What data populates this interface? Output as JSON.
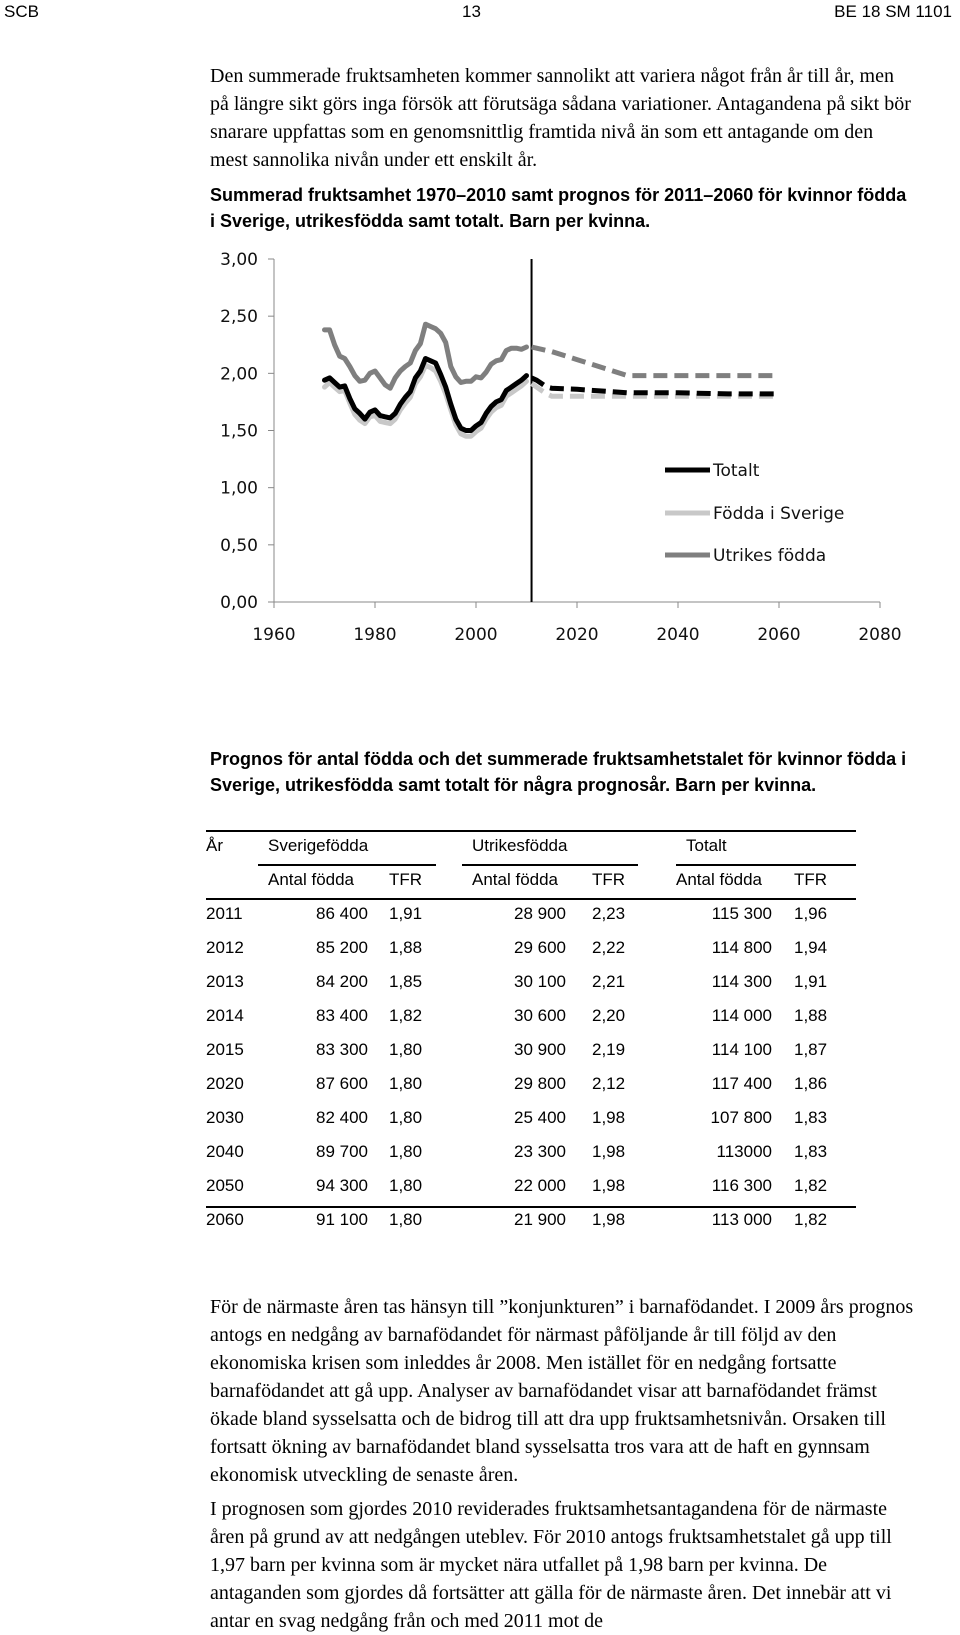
{
  "header": {
    "left": "SCB",
    "page": "13",
    "right": "BE 18 SM 1101"
  },
  "intro_paragraph": "Den summerade fruktsamheten kommer sannolikt att variera något från år till år, men på längre sikt görs inga försök att förutsäga sådana variationer. Antagandena på sikt bör snarare uppfattas som en genomsnittlig framtida nivå än som ett antagande om den mest sannolika nivån under ett enskilt år.",
  "chart_caption": "Summerad fruktsamhet 1970–2010 samt prognos för 2011–2060 för kvinnor födda i Sverige, utrikesfödda samt totalt. Barn per kvinna.",
  "chart_data": {
    "type": "line",
    "title": "",
    "xlabel": "",
    "ylabel": "",
    "xlim": [
      1960,
      2080
    ],
    "ylim": [
      0,
      3
    ],
    "x_ticks": [
      "1960",
      "1980",
      "2000",
      "2020",
      "2040",
      "2060",
      "2080"
    ],
    "y_ticks": [
      "0,00",
      "0,50",
      "1,00",
      "1,50",
      "2,00",
      "2,50",
      "3,00"
    ],
    "forecast_divider_year": 2011,
    "legend_position": "inside-right",
    "series": [
      {
        "name": "Totalt",
        "color": "#000000",
        "historical": [
          [
            1970,
            1.94
          ],
          [
            1971,
            1.96
          ],
          [
            1972,
            1.92
          ],
          [
            1973,
            1.88
          ],
          [
            1974,
            1.89
          ],
          [
            1975,
            1.78
          ],
          [
            1976,
            1.69
          ],
          [
            1977,
            1.65
          ],
          [
            1978,
            1.6
          ],
          [
            1979,
            1.66
          ],
          [
            1980,
            1.68
          ],
          [
            1981,
            1.63
          ],
          [
            1982,
            1.62
          ],
          [
            1983,
            1.61
          ],
          [
            1984,
            1.65
          ],
          [
            1985,
            1.73
          ],
          [
            1986,
            1.79
          ],
          [
            1987,
            1.84
          ],
          [
            1988,
            1.96
          ],
          [
            1989,
            2.02
          ],
          [
            1990,
            2.13
          ],
          [
            1991,
            2.11
          ],
          [
            1992,
            2.09
          ],
          [
            1993,
            1.99
          ],
          [
            1994,
            1.88
          ],
          [
            1995,
            1.73
          ],
          [
            1996,
            1.6
          ],
          [
            1997,
            1.52
          ],
          [
            1998,
            1.5
          ],
          [
            1999,
            1.5
          ],
          [
            2000,
            1.54
          ],
          [
            2001,
            1.57
          ],
          [
            2002,
            1.65
          ],
          [
            2003,
            1.71
          ],
          [
            2004,
            1.75
          ],
          [
            2005,
            1.77
          ],
          [
            2006,
            1.85
          ],
          [
            2007,
            1.88
          ],
          [
            2008,
            1.91
          ],
          [
            2009,
            1.94
          ],
          [
            2010,
            1.98
          ]
        ],
        "forecast": [
          [
            2011,
            1.96
          ],
          [
            2012,
            1.94
          ],
          [
            2013,
            1.91
          ],
          [
            2014,
            1.88
          ],
          [
            2015,
            1.87
          ],
          [
            2020,
            1.86
          ],
          [
            2030,
            1.83
          ],
          [
            2040,
            1.83
          ],
          [
            2050,
            1.82
          ],
          [
            2060,
            1.82
          ]
        ]
      },
      {
        "name": "Födda i Sverige",
        "color": "#c8c8c8",
        "historical": [
          [
            1970,
            1.88
          ],
          [
            1971,
            1.92
          ],
          [
            1972,
            1.88
          ],
          [
            1973,
            1.84
          ],
          [
            1974,
            1.85
          ],
          [
            1975,
            1.74
          ],
          [
            1976,
            1.64
          ],
          [
            1977,
            1.59
          ],
          [
            1978,
            1.56
          ],
          [
            1979,
            1.62
          ],
          [
            1980,
            1.63
          ],
          [
            1981,
            1.58
          ],
          [
            1982,
            1.57
          ],
          [
            1983,
            1.56
          ],
          [
            1984,
            1.6
          ],
          [
            1985,
            1.68
          ],
          [
            1986,
            1.74
          ],
          [
            1987,
            1.79
          ],
          [
            1988,
            1.91
          ],
          [
            1989,
            1.97
          ],
          [
            1990,
            2.07
          ],
          [
            1991,
            2.05
          ],
          [
            1992,
            2.02
          ],
          [
            1993,
            1.93
          ],
          [
            1994,
            1.82
          ],
          [
            1995,
            1.68
          ],
          [
            1996,
            1.55
          ],
          [
            1997,
            1.47
          ],
          [
            1998,
            1.45
          ],
          [
            1999,
            1.45
          ],
          [
            2000,
            1.49
          ],
          [
            2001,
            1.52
          ],
          [
            2002,
            1.6
          ],
          [
            2003,
            1.66
          ],
          [
            2004,
            1.7
          ],
          [
            2005,
            1.72
          ],
          [
            2006,
            1.8
          ],
          [
            2007,
            1.83
          ],
          [
            2008,
            1.86
          ],
          [
            2009,
            1.89
          ],
          [
            2010,
            1.93
          ]
        ],
        "forecast": [
          [
            2011,
            1.91
          ],
          [
            2012,
            1.88
          ],
          [
            2013,
            1.85
          ],
          [
            2014,
            1.82
          ],
          [
            2015,
            1.8
          ],
          [
            2020,
            1.8
          ],
          [
            2030,
            1.8
          ],
          [
            2040,
            1.8
          ],
          [
            2050,
            1.8
          ],
          [
            2060,
            1.8
          ]
        ]
      },
      {
        "name": "Utrikes födda",
        "color": "#7f7f7f",
        "historical": [
          [
            1970,
            2.38
          ],
          [
            1971,
            2.38
          ],
          [
            1972,
            2.25
          ],
          [
            1973,
            2.15
          ],
          [
            1974,
            2.13
          ],
          [
            1975,
            2.06
          ],
          [
            1976,
            1.98
          ],
          [
            1977,
            1.93
          ],
          [
            1978,
            1.94
          ],
          [
            1979,
            2.0
          ],
          [
            1980,
            2.02
          ],
          [
            1981,
            1.96
          ],
          [
            1982,
            1.9
          ],
          [
            1983,
            1.87
          ],
          [
            1984,
            1.96
          ],
          [
            1985,
            2.02
          ],
          [
            1986,
            2.06
          ],
          [
            1987,
            2.09
          ],
          [
            1988,
            2.2
          ],
          [
            1989,
            2.26
          ],
          [
            1990,
            2.43
          ],
          [
            1991,
            2.41
          ],
          [
            1992,
            2.39
          ],
          [
            1993,
            2.35
          ],
          [
            1994,
            2.27
          ],
          [
            1995,
            2.06
          ],
          [
            1996,
            1.97
          ],
          [
            1997,
            1.92
          ],
          [
            1998,
            1.93
          ],
          [
            1999,
            1.93
          ],
          [
            2000,
            1.97
          ],
          [
            2001,
            1.96
          ],
          [
            2002,
            2.01
          ],
          [
            2003,
            2.08
          ],
          [
            2004,
            2.11
          ],
          [
            2005,
            2.12
          ],
          [
            2006,
            2.2
          ],
          [
            2007,
            2.22
          ],
          [
            2008,
            2.22
          ],
          [
            2009,
            2.21
          ],
          [
            2010,
            2.23
          ]
        ],
        "forecast": [
          [
            2011,
            2.23
          ],
          [
            2012,
            2.22
          ],
          [
            2013,
            2.21
          ],
          [
            2014,
            2.2
          ],
          [
            2015,
            2.19
          ],
          [
            2020,
            2.12
          ],
          [
            2030,
            1.98
          ],
          [
            2040,
            1.98
          ],
          [
            2050,
            1.98
          ],
          [
            2060,
            1.98
          ]
        ]
      }
    ]
  },
  "table_caption": "Prognos för antal födda och det summerade fruktsamhetstalet för kvinnor födda i Sverige, utrikesfödda samt totalt för några prognosår. Barn per kvinna.",
  "table": {
    "year_header": "År",
    "groups": [
      "Sverigefödda",
      "Utrikesfödda",
      "Totalt"
    ],
    "subheaders": [
      "Antal födda",
      "TFR",
      "Antal födda",
      "TFR",
      "Antal födda",
      "TFR"
    ],
    "rows": [
      [
        "2011",
        "86 400",
        "1,91",
        "28 900",
        "2,23",
        "115 300",
        "1,96"
      ],
      [
        "2012",
        "85 200",
        "1,88",
        "29 600",
        "2,22",
        "114 800",
        "1,94"
      ],
      [
        "2013",
        "84 200",
        "1,85",
        "30 100",
        "2,21",
        "114 300",
        "1,91"
      ],
      [
        "2014",
        "83 400",
        "1,82",
        "30 600",
        "2,20",
        "114 000",
        "1,88"
      ],
      [
        "2015",
        "83 300",
        "1,80",
        "30 900",
        "2,19",
        "114 100",
        "1,87"
      ],
      [
        "2020",
        "87 600",
        "1,80",
        "29 800",
        "2,12",
        "117 400",
        "1,86"
      ],
      [
        "2030",
        "82 400",
        "1,80",
        "25 400",
        "1,98",
        "107 800",
        "1,83"
      ],
      [
        "2040",
        "89 700",
        "1,80",
        "23 300",
        "1,98",
        "113000",
        "1,83"
      ],
      [
        "2050",
        "94 300",
        "1,80",
        "22 000",
        "1,98",
        "116 300",
        "1,82"
      ],
      [
        "2060",
        "91 100",
        "1,80",
        "21 900",
        "1,98",
        "113 000",
        "1,82"
      ]
    ]
  },
  "paragraph_2": "För de närmaste åren tas hänsyn till ”konjunkturen” i barnafödandet. I 2009 års prognos antogs en nedgång av barnafödandet för närmast påföljande år till följd av den ekonomiska krisen som inleddes år 2008. Men istället för en nedgång fortsatte barnafödandet att gå upp. Analyser av barnafödandet visar att barnafödandet främst ökade bland sysselsatta och de bidrog till att dra upp fruktsamhetsnivån. Orsaken till fortsatt ökning av barnafödandet bland sysselsatta tros vara att de haft en gynnsam ekonomisk utveckling de senaste åren.",
  "paragraph_3": "I prognosen som gjordes 2010 reviderades fruktsamhetsantagandena för de närmaste åren på grund av att nedgången uteblev. För 2010 antogs fruktsamhetstalet gå upp till 1,97 barn per kvinna som är mycket nära utfallet på 1,98 barn per kvinna. De antaganden som gjordes då fortsätter att gälla för de närmaste åren. Det innebär att vi antar en svag nedgång från och med 2011 mot de"
}
